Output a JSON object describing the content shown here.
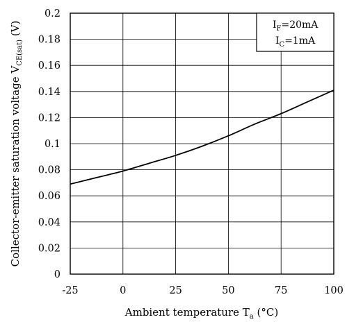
{
  "chart_data": {
    "type": "line",
    "xlabel": {
      "prefix": "Ambient temperature T",
      "sub": "a",
      "suffix": " (°C)"
    },
    "ylabel": {
      "prefix": "Collector-emitter saturation voltage V",
      "sub": "CE(sat)",
      "suffix": " (V)"
    },
    "xlim": [
      -25,
      100
    ],
    "ylim": [
      0,
      0.2
    ],
    "x_ticks": [
      -25,
      0,
      25,
      50,
      75,
      100
    ],
    "x_tick_labels": [
      "-25",
      "0",
      "25",
      "50",
      "75",
      "100"
    ],
    "y_ticks": [
      0,
      0.02,
      0.04,
      0.06,
      0.08,
      0.1,
      0.12,
      0.14,
      0.16,
      0.18,
      0.2
    ],
    "y_tick_labels": [
      "0",
      "0.02",
      "0.04",
      "0.06",
      "0.08",
      "0.1",
      "0.12",
      "0.14",
      "0.16",
      "0.18",
      "0.2"
    ],
    "grid": true,
    "legend_position": "top-right",
    "conditions": [
      {
        "prefix": "I",
        "sub": "F",
        "suffix": "=20mA"
      },
      {
        "prefix": "I",
        "sub": "C",
        "suffix": "=1mA"
      }
    ],
    "series": [
      {
        "x": [
          -25,
          -12.5,
          0,
          12.5,
          25,
          37.5,
          50,
          62.5,
          75,
          87.5,
          100
        ],
        "y": [
          0.069,
          0.074,
          0.079,
          0.085,
          0.091,
          0.098,
          0.106,
          0.115,
          0.123,
          0.132,
          0.141
        ]
      }
    ],
    "colors": {
      "line": "#000000",
      "grid": "#000000",
      "frame": "#000000"
    }
  }
}
